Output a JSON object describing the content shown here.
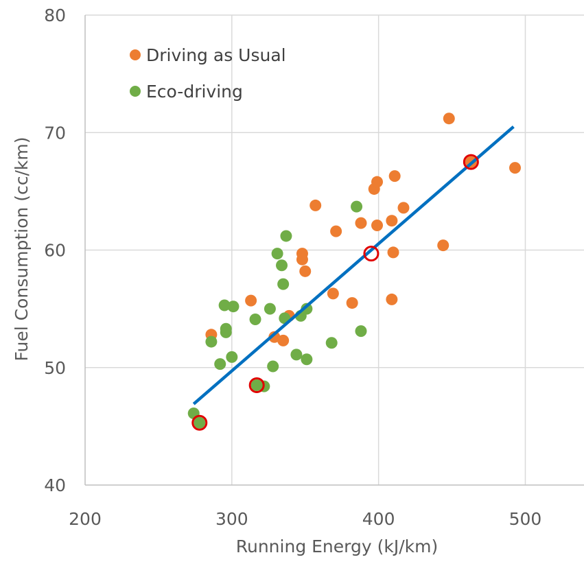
{
  "chart_data": {
    "type": "scatter",
    "xlabel": "Running Energy (kJ/km)",
    "ylabel": "Fuel Consumption (cc/km)",
    "xlim": [
      200,
      540
    ],
    "ylim": [
      40,
      80
    ],
    "xticks": [
      200,
      300,
      400,
      500
    ],
    "yticks": [
      40,
      50,
      60,
      70,
      80
    ],
    "grid": true,
    "legend_position": "top-left",
    "series": [
      {
        "name": "Driving as Usual",
        "color": "#ED7D31",
        "points": [
          [
            286,
            52.8
          ],
          [
            313,
            55.7
          ],
          [
            329,
            52.6
          ],
          [
            335,
            52.3
          ],
          [
            339,
            54.4
          ],
          [
            348,
            59.7
          ],
          [
            348,
            59.2
          ],
          [
            350,
            58.2
          ],
          [
            357,
            63.8
          ],
          [
            369,
            56.3
          ],
          [
            371,
            61.6
          ],
          [
            382,
            55.5
          ],
          [
            388,
            62.3
          ],
          [
            397,
            65.2
          ],
          [
            399,
            65.8
          ],
          [
            399,
            62.1
          ],
          [
            409,
            62.5
          ],
          [
            410,
            59.8
          ],
          [
            409,
            55.8
          ],
          [
            411,
            66.3
          ],
          [
            417,
            63.6
          ],
          [
            444,
            60.4
          ],
          [
            448,
            71.2
          ],
          [
            463,
            67.5
          ],
          [
            493,
            67.0
          ]
        ]
      },
      {
        "name": "Eco-driving",
        "color": "#70AD47",
        "points": [
          [
            274,
            46.1
          ],
          [
            278,
            45.3
          ],
          [
            286,
            52.2
          ],
          [
            292,
            50.3
          ],
          [
            295,
            55.3
          ],
          [
            296,
            53.3
          ],
          [
            296,
            53.0
          ],
          [
            300,
            50.9
          ],
          [
            301,
            55.2
          ],
          [
            316,
            54.1
          ],
          [
            317,
            48.5
          ],
          [
            322,
            48.4
          ],
          [
            326,
            55.0
          ],
          [
            328,
            50.1
          ],
          [
            331,
            59.7
          ],
          [
            334,
            58.7
          ],
          [
            335,
            57.1
          ],
          [
            336,
            54.2
          ],
          [
            337,
            61.2
          ],
          [
            344,
            51.1
          ],
          [
            347,
            54.4
          ],
          [
            351,
            50.7
          ],
          [
            351,
            55.0
          ],
          [
            368,
            52.1
          ],
          [
            385,
            63.7
          ],
          [
            388,
            53.1
          ]
        ]
      }
    ],
    "trendline": {
      "color": "#0070C0",
      "start": [
        274,
        46.9
      ],
      "end": [
        492,
        70.5
      ]
    },
    "highlighted_points": {
      "color": "#E00000",
      "points": [
        [
          278,
          45.3
        ],
        [
          317,
          48.5
        ],
        [
          395,
          59.7
        ],
        [
          463,
          67.5
        ]
      ]
    }
  }
}
